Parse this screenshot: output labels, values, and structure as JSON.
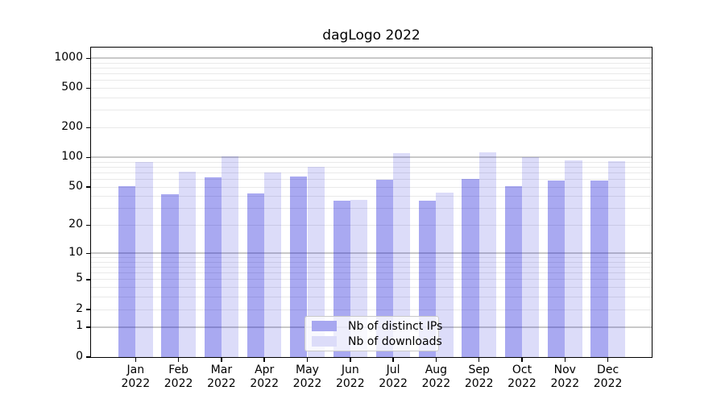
{
  "chart_data": {
    "type": "bar",
    "title": "dagLogo 2022",
    "categories": [
      "Jan",
      "Feb",
      "Mar",
      "Apr",
      "May",
      "Jun",
      "Jul",
      "Aug",
      "Sep",
      "Oct",
      "Nov",
      "Dec"
    ],
    "x_tick_second_line": "2022",
    "y_ticks": [
      0,
      1,
      2,
      5,
      10,
      20,
      50,
      100,
      200,
      500,
      1000
    ],
    "y_scale": "log1p",
    "ylim": [
      0,
      1280
    ],
    "grid": "horizontal major (decades) + minor (log subdivisions)",
    "legend_position": "lower center",
    "series": [
      {
        "name": "Nb of distinct IPs",
        "color": "#a7a7f0",
        "fill": "rgba(10,10,216,0.35)",
        "values": [
          51,
          42,
          63,
          43,
          64,
          36,
          59,
          36,
          61,
          51,
          58,
          58
        ]
      },
      {
        "name": "Nb of downloads",
        "color": "#dcdcf9",
        "fill": "rgba(10,10,216,0.14)",
        "values": [
          90,
          72,
          102,
          70,
          80,
          37,
          110,
          44,
          112,
          100,
          94,
          91
        ]
      }
    ],
    "colors": {
      "grid_major": "#c9c9c9",
      "grid_minor": "#e9e9e9",
      "axis": "#000000",
      "text": "#000000",
      "background": "#ffffff"
    }
  }
}
